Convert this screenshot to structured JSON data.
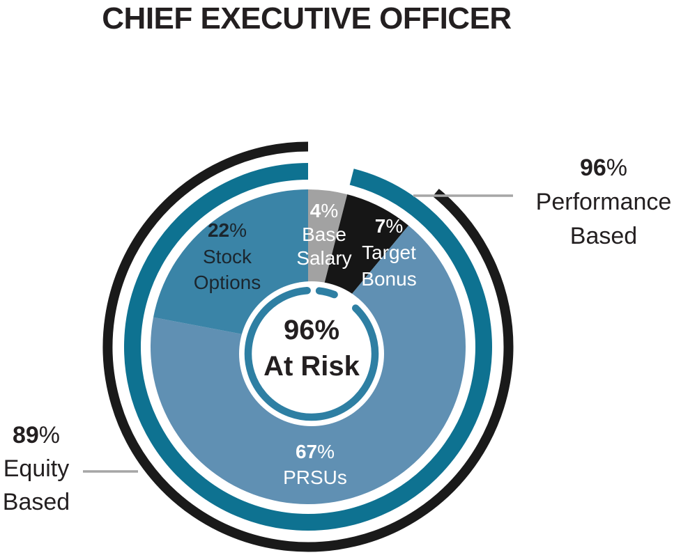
{
  "title": "CHIEF EXECUTIVE OFFICER",
  "unit": "%",
  "chart_data": {
    "type": "pie",
    "title": "CHIEF EXECUTIVE OFFICER",
    "unit": "%",
    "slices": [
      {
        "name": "Base Salary",
        "value": 4,
        "color": "#a2a2a2",
        "label_color": "#ffffff",
        "label_lines": [
          "Base",
          "Salary"
        ]
      },
      {
        "name": "Target Bonus",
        "value": 7,
        "color": "#161616",
        "label_color": "#ffffff",
        "label_lines": [
          "Target",
          "Bonus"
        ]
      },
      {
        "name": "PRSUs",
        "value": 67,
        "color": "#6090b3",
        "label_color": "#ffffff",
        "label_lines": [
          "PRSUs"
        ]
      },
      {
        "name": "Stock Options",
        "value": 22,
        "color": "#3a84a7",
        "label_color": "#1b262e",
        "label_lines": [
          "Stock",
          "Options"
        ]
      }
    ],
    "rings": [
      {
        "name": "Performance Based",
        "value": 96,
        "color": "#0e7291",
        "annotation_lines": [
          "Performance",
          "Based"
        ]
      },
      {
        "name": "Equity Based",
        "value": 89,
        "color": "#1a1a1a",
        "annotation_lines": [
          "Equity",
          "Based"
        ]
      }
    ],
    "center": {
      "value_text": "96%",
      "label": "At Risk"
    },
    "inner_ring_color": "#2e7fa3",
    "leader_line_color": "#a6a6a6",
    "legend_position": "none",
    "grid": false
  }
}
